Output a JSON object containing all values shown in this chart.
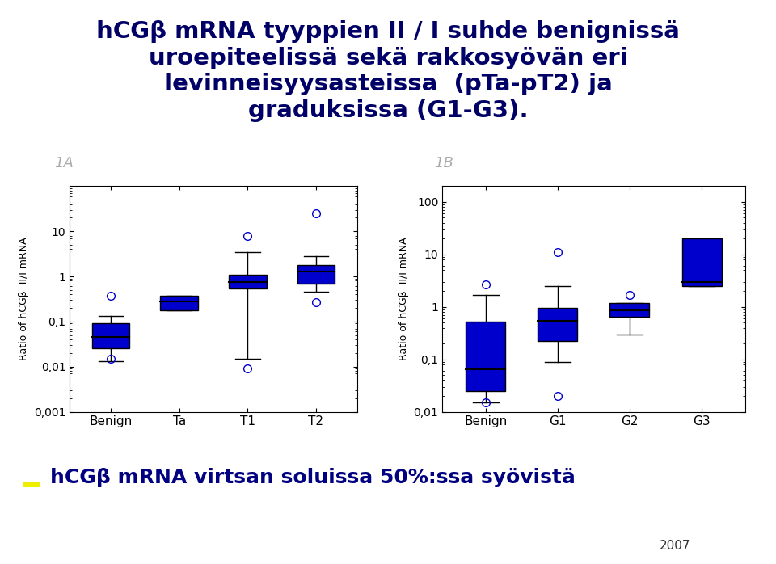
{
  "title_lines": [
    "hCGβ mRNA tyyppien II / I suhde benignissä",
    "uroepiteelissä sekä rakkosyövän eri",
    "levinneisyysasteissa  (pTa-pT2) ja",
    "graduksissa (G1-G3)."
  ],
  "title_bg": "#d8dff0",
  "label_1A": "1A",
  "label_1B": "1B",
  "ylabel1": "Ratio of hCGβ  II/I mRNA",
  "ylabel2": "Ratio of hCGβ  II/I mRNA",
  "categories1": [
    "Benign",
    "Ta",
    "T1",
    "T2"
  ],
  "categories2": [
    "Benign",
    "G1",
    "G2",
    "G3"
  ],
  "box_color": "#0000cc",
  "whisker_color": "black",
  "outlier_color": "#0000cc",
  "box1": {
    "Benign": {
      "q1": 0.025,
      "median": 0.045,
      "q3": 0.09,
      "whislo": 0.013,
      "whishi": 0.13,
      "fliers_low": [
        0.015
      ],
      "fliers_high": [
        0.37
      ]
    },
    "Ta": {
      "q1": 0.18,
      "median": 0.28,
      "q3": 0.37,
      "whislo": 0.18,
      "whishi": 0.37,
      "fliers_low": [],
      "fliers_high": []
    },
    "T1": {
      "q1": 0.55,
      "median": 0.75,
      "q3": 1.1,
      "whislo": 0.015,
      "whishi": 3.5,
      "fliers_low": [
        0.009
      ],
      "fliers_high": [
        8.0
      ]
    },
    "T2": {
      "q1": 0.7,
      "median": 1.3,
      "q3": 1.8,
      "whislo": 0.45,
      "whishi": 2.8,
      "fliers_low": [
        0.27
      ],
      "fliers_high": [
        25.0
      ]
    }
  },
  "box2": {
    "Benign": {
      "q1": 0.025,
      "median": 0.065,
      "q3": 0.52,
      "whislo": 0.015,
      "whishi": 1.7,
      "fliers_low": [
        0.015
      ],
      "fliers_high": [
        2.7
      ]
    },
    "G1": {
      "q1": 0.22,
      "median": 0.55,
      "q3": 0.95,
      "whislo": 0.09,
      "whishi": 2.5,
      "fliers_low": [
        0.02
      ],
      "fliers_high": [
        11.0
      ]
    },
    "G2": {
      "q1": 0.65,
      "median": 0.85,
      "q3": 1.2,
      "whislo": 0.3,
      "whishi": 1.2,
      "fliers_low": [],
      "fliers_high": [
        1.7
      ]
    },
    "G3": {
      "q1": 2.5,
      "median": 3.0,
      "q3": 20.0,
      "whislo": 2.5,
      "whishi": 20.0,
      "fliers_low": [],
      "fliers_high": []
    }
  },
  "ylim1": [
    0.001,
    100
  ],
  "ylim2": [
    0.01,
    200
  ],
  "yticks1": [
    0.001,
    0.01,
    0.1,
    1,
    10
  ],
  "yticks2": [
    0.01,
    0.1,
    1,
    10,
    100
  ],
  "yticklabels1": [
    "0,001",
    "0,01",
    "0,1",
    "1",
    "10"
  ],
  "yticklabels2": [
    "0,01",
    "0,1",
    "1",
    "10",
    "100"
  ],
  "footer_text": "hCGβ mRNA virtsan soluissa 50%:ssa syövistä",
  "footer_marker_color": "#eeee00",
  "year_text": "2007",
  "bg_color": "white"
}
